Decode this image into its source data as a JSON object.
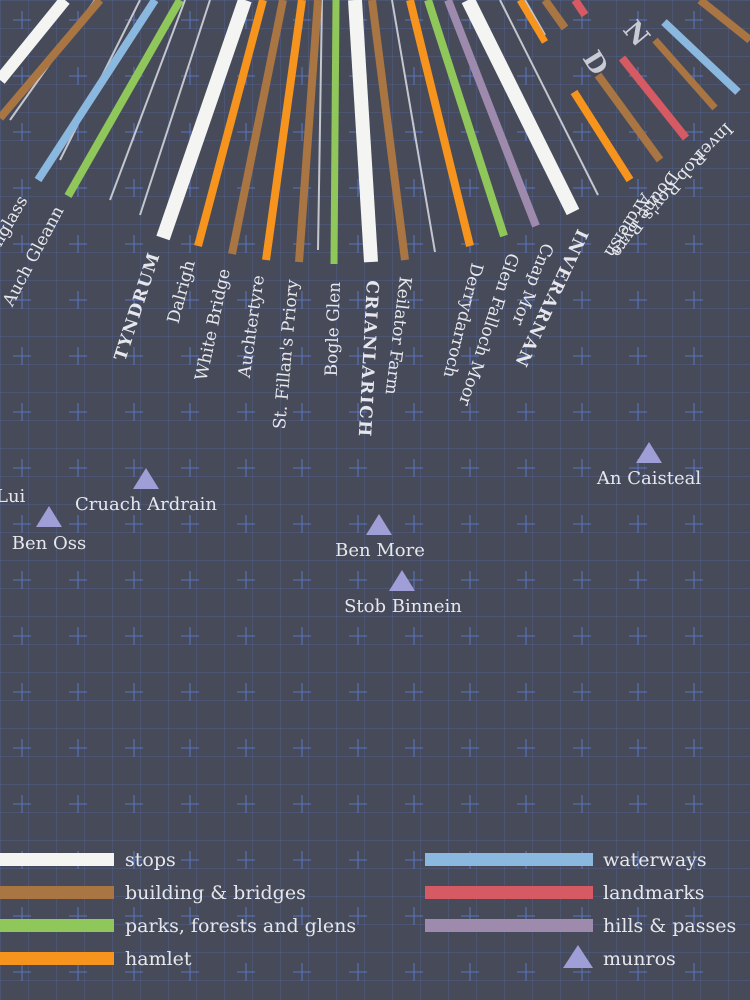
{
  "colors": {
    "stops": "#f4f4f2",
    "buildings": "#a87543",
    "parks": "#8fc75a",
    "hamlet": "#f7941d",
    "waterways": "#8ab8df",
    "landmarks": "#d65a63",
    "hills": "#9d8aad",
    "munros": "#9f9ed6",
    "thin": "#c5c7cf"
  },
  "ring_letters": [
    "N",
    "D"
  ],
  "places": [
    {
      "name": "Auch Gleann",
      "category": "parks",
      "stop": false
    },
    {
      "name": "Tyndrum",
      "category": "stops",
      "stop": true
    },
    {
      "name": "Dalrigh",
      "category": "hamlet",
      "stop": false
    },
    {
      "name": "White Bridge",
      "category": "buildings",
      "stop": false
    },
    {
      "name": "Auchtertyre",
      "category": "hamlet",
      "stop": false
    },
    {
      "name": "St. Fillan's Priory",
      "category": "buildings",
      "stop": false
    },
    {
      "name": "Bogle Glen",
      "category": "parks",
      "stop": false
    },
    {
      "name": "CRIANLARICH",
      "category": "stops",
      "stop": true
    },
    {
      "name": "Keilator Farm",
      "category": "buildings",
      "stop": false
    },
    {
      "name": "Derrydarroch",
      "category": "hamlet",
      "stop": false
    },
    {
      "name": "Glen Falloch Moor",
      "category": "parks",
      "stop": false
    },
    {
      "name": "Cnap Mor",
      "category": "hills",
      "stop": false
    },
    {
      "name": "INVERARNAN",
      "category": "stops",
      "stop": true
    },
    {
      "name": "Ardleish",
      "category": "hamlet",
      "stop": false
    },
    {
      "name": "Doune Byre",
      "category": "buildings",
      "stop": false
    },
    {
      "name": "Rob Roy's",
      "category": "landmarks",
      "stop": false
    },
    {
      "name": "Inver",
      "category": "waterways",
      "stop": false
    }
  ],
  "partial_labels": [
    "nglass",
    "Lui"
  ],
  "munros": [
    {
      "name": "Cruach Ardrain"
    },
    {
      "name": "Ben Oss"
    },
    {
      "name": "Ben More"
    },
    {
      "name": "Stob Binnein"
    },
    {
      "name": "An Caisteal"
    }
  ],
  "legend": [
    {
      "label": "stops",
      "color_key": "stops"
    },
    {
      "label": "building & bridges",
      "color_key": "buildings"
    },
    {
      "label": "parks, forests and glens",
      "color_key": "parks"
    },
    {
      "label": "hamlet",
      "color_key": "hamlet"
    },
    {
      "label": "waterways",
      "color_key": "waterways"
    },
    {
      "label": "landmarks",
      "color_key": "landmarks"
    },
    {
      "label": "hills & passes",
      "color_key": "hills"
    },
    {
      "label": "munros",
      "color_key": "munros",
      "marker": "triangle"
    }
  ]
}
